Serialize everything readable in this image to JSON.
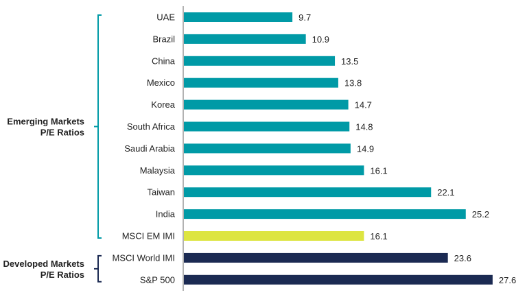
{
  "chart_data": {
    "type": "bar",
    "orientation": "horizontal",
    "title": "",
    "xlabel": "",
    "ylabel": "",
    "xlim": [
      0,
      28
    ],
    "grid": false,
    "categories": [
      "UAE",
      "Brazil",
      "China",
      "Mexico",
      "Korea",
      "South Africa",
      "Saudi Arabia",
      "Malaysia",
      "Taiwan",
      "India",
      "MSCI EM IMI",
      "MSCI World IMI",
      "S&P 500"
    ],
    "values": [
      9.7,
      10.9,
      13.5,
      13.8,
      14.7,
      14.8,
      14.9,
      16.1,
      22.1,
      25.2,
      16.1,
      23.6,
      27.6
    ],
    "value_labels": [
      "9.7",
      "10.9",
      "13.5",
      "13.8",
      "14.7",
      "14.8",
      "14.9",
      "16.1",
      "22.1",
      "25.2",
      "16.1",
      "23.6",
      "27.6"
    ],
    "bar_colors": [
      "#009aa6",
      "#009aa6",
      "#009aa6",
      "#009aa6",
      "#009aa6",
      "#009aa6",
      "#009aa6",
      "#009aa6",
      "#009aa6",
      "#009aa6",
      "#dde541",
      "#1b2a52",
      "#1b2a52"
    ],
    "groups": [
      {
        "label_line1": "Emerging Markets",
        "label_line2": "P/E Ratios",
        "first": 0,
        "last": 10,
        "color": "#009aa6"
      },
      {
        "label_line1": "Developed Markets",
        "label_line2": "P/E Ratios",
        "first": 11,
        "last": 12,
        "color": "#1b2a52"
      }
    ]
  }
}
